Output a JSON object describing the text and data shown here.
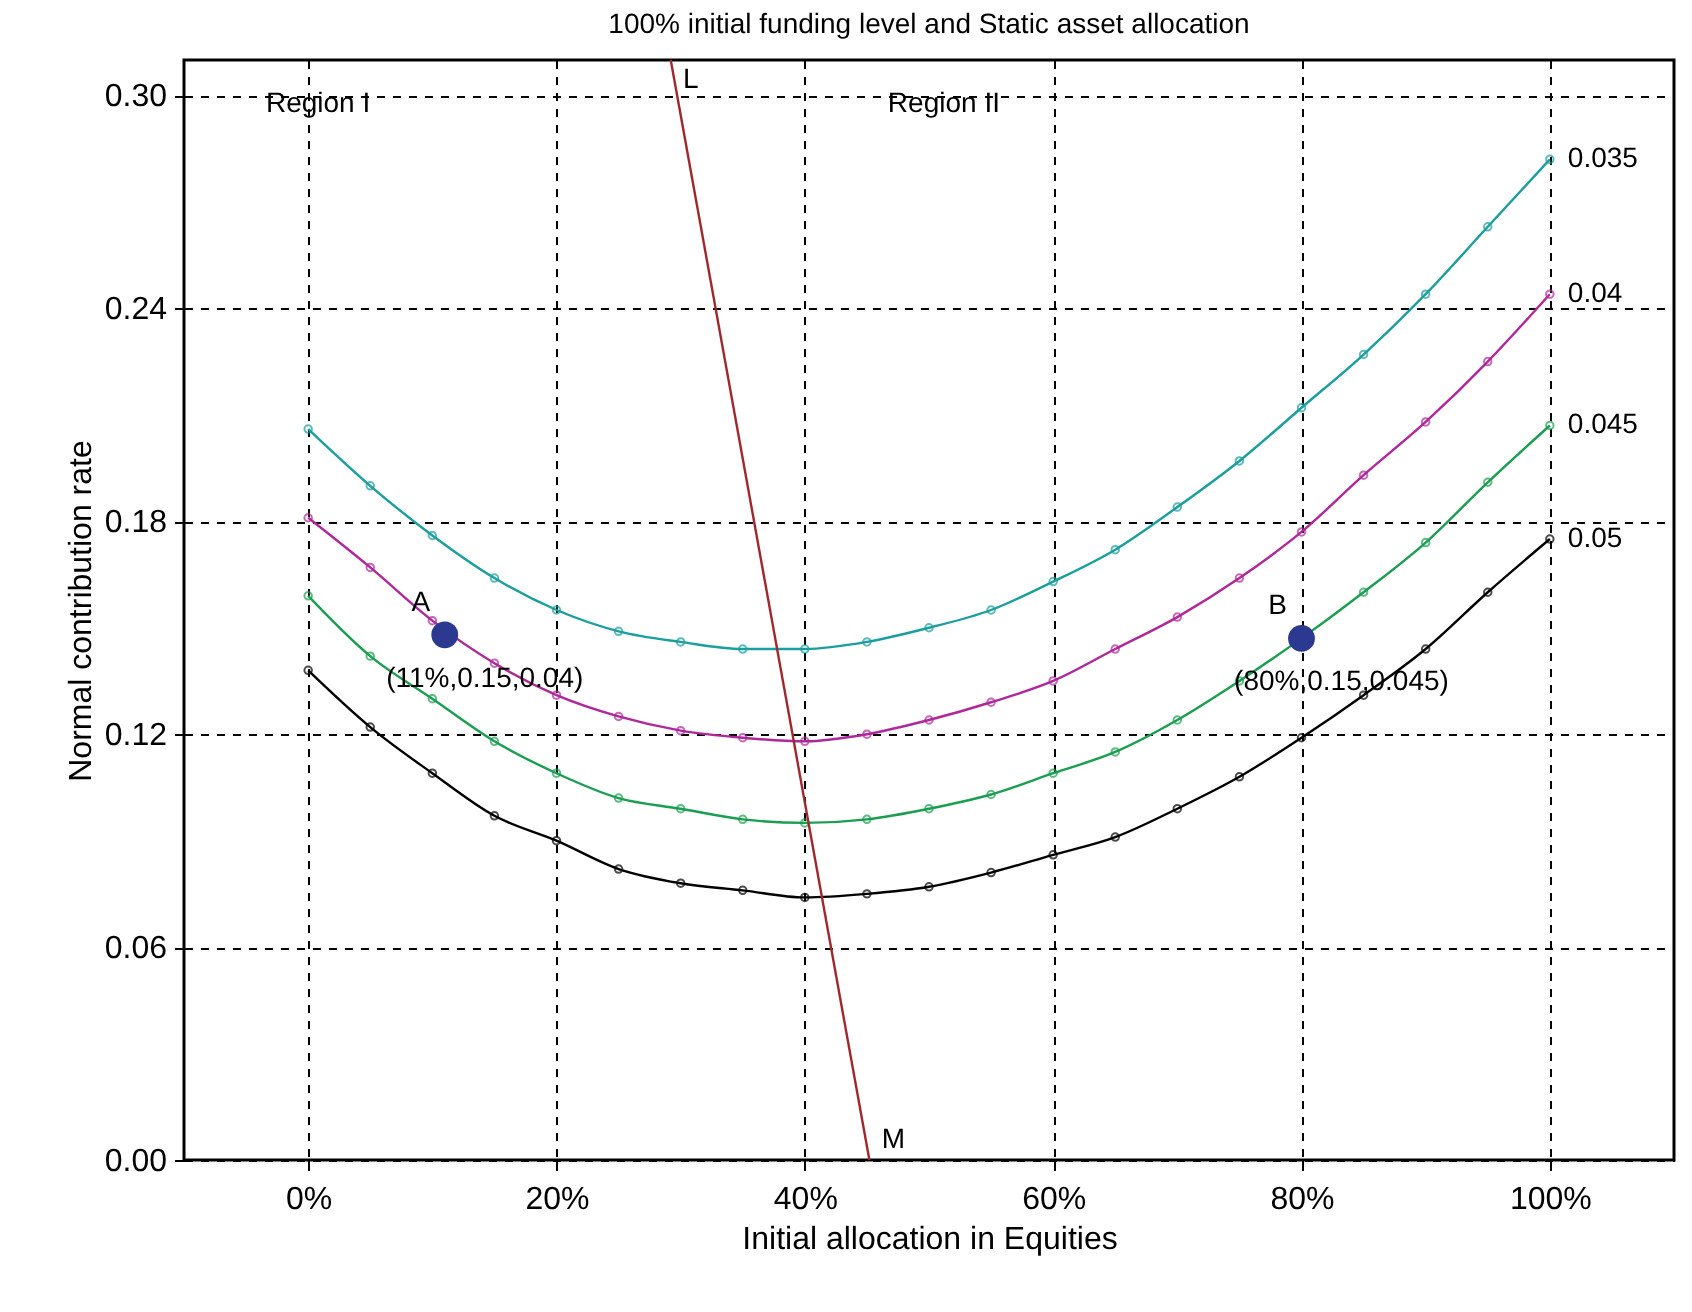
{
  "chart_data": {
    "type": "line",
    "title": "100% initial funding level and Static asset allocation",
    "xlabel": "Initial allocation in Equities",
    "ylabel": "Normal contribution rate",
    "x": [
      0,
      5,
      10,
      15,
      20,
      25,
      30,
      35,
      40,
      45,
      50,
      55,
      60,
      65,
      70,
      75,
      80,
      85,
      90,
      95,
      100
    ],
    "xlim": [
      -10,
      110
    ],
    "ylim": [
      0,
      0.31
    ],
    "xticks": [
      {
        "value": 0,
        "label": "0%"
      },
      {
        "value": 20,
        "label": "20%"
      },
      {
        "value": 40,
        "label": "40%"
      },
      {
        "value": 60,
        "label": "60%"
      },
      {
        "value": 80,
        "label": "80%"
      },
      {
        "value": 100,
        "label": "100%"
      }
    ],
    "yticks": [
      {
        "value": 0,
        "label": "0.00"
      },
      0.06,
      0.12,
      0.18,
      0.24,
      {
        "value": 0.3,
        "label": "0.30"
      }
    ],
    "grid": true,
    "marker": "circle",
    "line_style": "solid",
    "series": [
      {
        "name": "0.035",
        "color": "#1a9e9e",
        "values": [
          0.206,
          0.19,
          0.176,
          0.164,
          0.155,
          0.149,
          0.146,
          0.144,
          0.144,
          0.146,
          0.15,
          0.155,
          0.163,
          0.172,
          0.184,
          0.197,
          0.212,
          0.227,
          0.244,
          0.263,
          0.282
        ]
      },
      {
        "name": "0.04",
        "color": "#b0279b",
        "values": [
          0.181,
          0.167,
          0.152,
          0.14,
          0.131,
          0.125,
          0.121,
          0.119,
          0.118,
          0.12,
          0.124,
          0.129,
          0.135,
          0.144,
          0.153,
          0.164,
          0.177,
          0.193,
          0.208,
          0.225,
          0.244
        ]
      },
      {
        "name": "0.045",
        "color": "#1a9e50",
        "values": [
          0.159,
          0.142,
          0.13,
          0.118,
          0.109,
          0.102,
          0.099,
          0.096,
          0.095,
          0.096,
          0.099,
          0.103,
          0.109,
          0.115,
          0.124,
          0.135,
          0.147,
          0.16,
          0.174,
          0.191,
          0.207
        ]
      },
      {
        "name": "0.05",
        "color": "#000000",
        "values": [
          0.138,
          0.122,
          0.109,
          0.097,
          0.09,
          0.082,
          0.078,
          0.076,
          0.074,
          0.075,
          0.077,
          0.081,
          0.086,
          0.091,
          0.099,
          0.108,
          0.119,
          0.131,
          0.144,
          0.16,
          0.175
        ]
      },
      {
        "type": "line",
        "marker": "none",
        "color": "#a0282d",
        "x": [
          29.2,
          45.2
        ],
        "values": [
          0.31,
          0
        ]
      },
      {
        "type": "scatter",
        "color": "#2b3990",
        "x": [
          11,
          80
        ],
        "values": [
          0.148,
          0.147
        ]
      }
    ],
    "annotations": [
      {
        "text": "L",
        "x": 29.2,
        "y": 0.31
      },
      {
        "text": "M",
        "x": 45.2,
        "y": 0
      },
      "Region I",
      "Region II",
      {
        "text": "A",
        "x": 11,
        "y": 0.148
      },
      {
        "text": "(11%,0.15,0.04)",
        "x": 11,
        "y": 0.148
      },
      {
        "text": "B",
        "x": 80,
        "y": 0.147
      },
      {
        "text": "(80%,0.15,0.045)",
        "x": 80,
        "y": 0.147
      }
    ]
  }
}
